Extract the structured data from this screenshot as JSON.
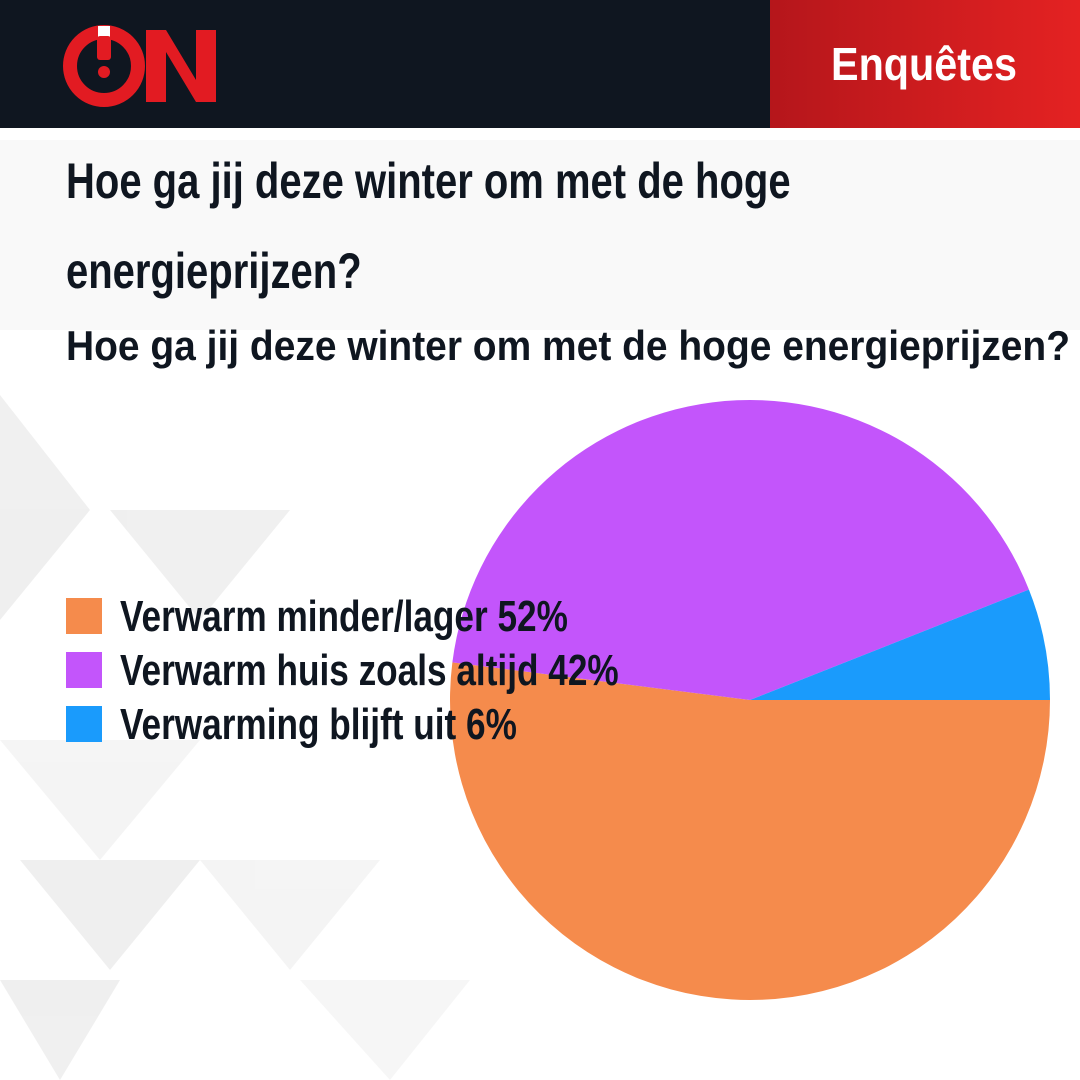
{
  "header": {
    "tag": "Enquêtes"
  },
  "chart_data": {
    "type": "pie",
    "title": "Hoe ga jij deze winter om met de hoge energieprijzen?",
    "subtitle": "Hoe ga jij deze winter om met de hoge energieprijzen?",
    "categories": [
      "Verwarm minder/lager 52%",
      "Verwarm huis zoals altijd 42%",
      "Verwarming blijft uit 6%"
    ],
    "values": [
      52,
      42,
      6
    ],
    "colors": [
      "#f58b4c",
      "#c355fb",
      "#1a9bfc"
    ],
    "legend": "left"
  }
}
